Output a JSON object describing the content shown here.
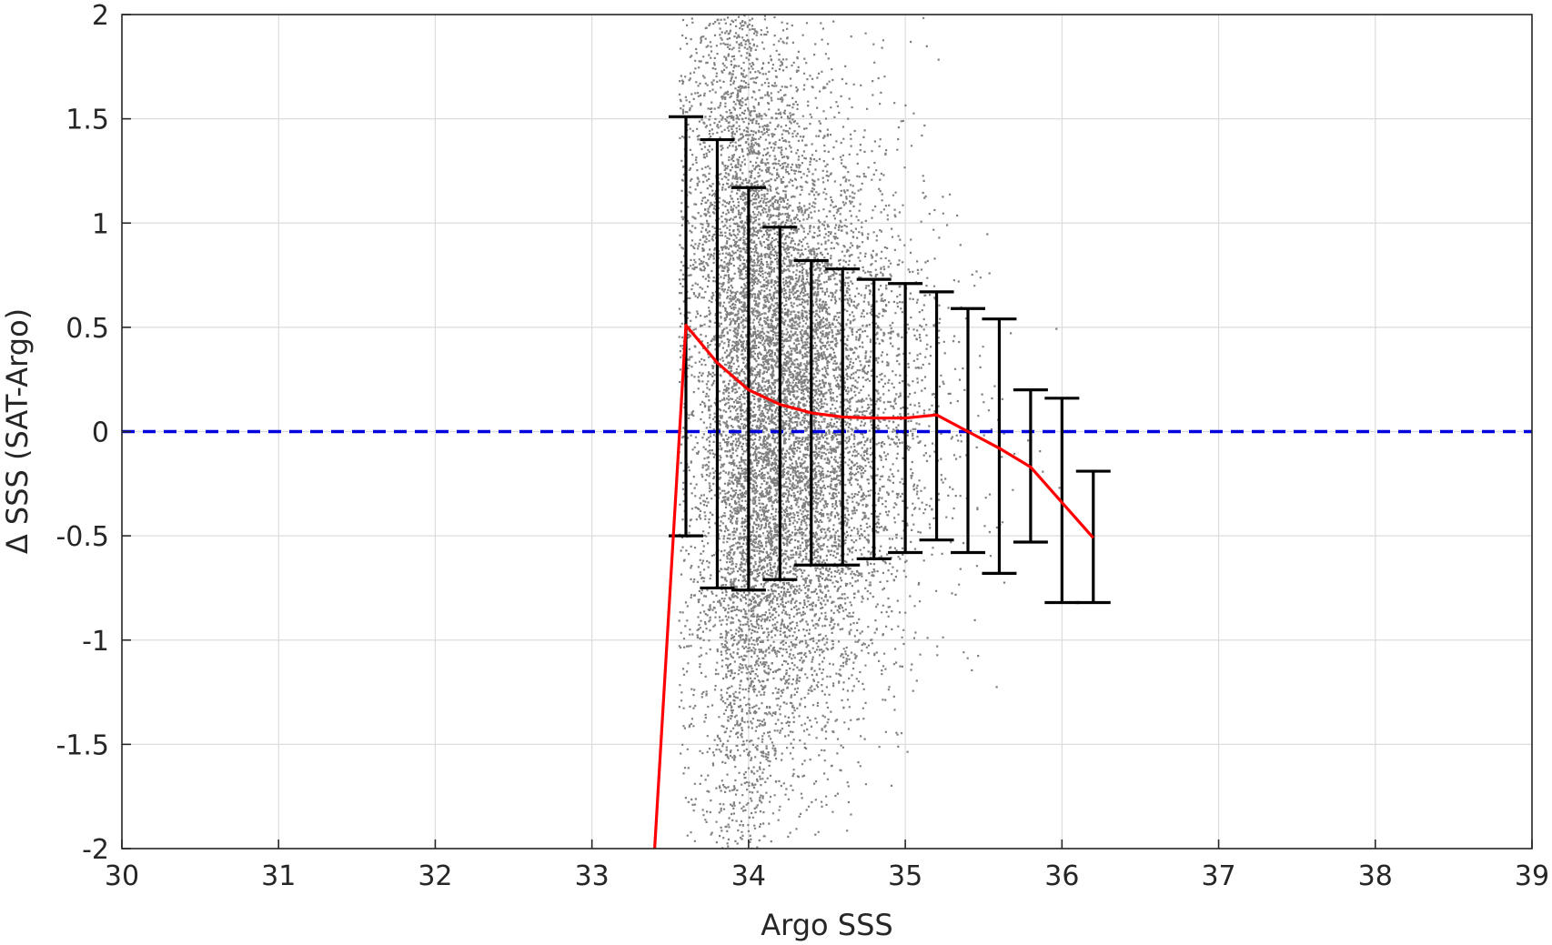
{
  "chart_data": {
    "type": "scatter",
    "xlabel": "Argo SSS",
    "ylabel": "Δ SSS (SAT-Argo)",
    "xlim": [
      30,
      39
    ],
    "ylim": [
      -2,
      2
    ],
    "x_ticks": [
      30,
      31,
      32,
      33,
      34,
      35,
      36,
      37,
      38,
      39
    ],
    "y_ticks": [
      -2,
      -1.5,
      -1,
      -0.5,
      0,
      0.5,
      1,
      1.5,
      2
    ],
    "x_tick_labels": [
      "30",
      "31",
      "32",
      "33",
      "34",
      "35",
      "36",
      "37",
      "38",
      "39"
    ],
    "y_tick_labels": [
      "-2",
      "-1.5",
      "-1",
      "-0.5",
      "0",
      "0.5",
      "1",
      "1.5",
      "2"
    ],
    "grid": true,
    "colors": {
      "points": "#808080",
      "mean_line": "#ff0000",
      "zero_line": "#0000dd",
      "error_bars": "#000000"
    },
    "scatter_cloud": {
      "x_range": [
        33.5,
        36.4
      ],
      "dense_x_range": [
        33.7,
        35.2
      ],
      "y_spread_range": [
        -2,
        2
      ],
      "point_count_approx": 12000
    },
    "binned_stats": {
      "x": [
        33.4,
        33.6,
        33.8,
        34.0,
        34.2,
        34.4,
        34.6,
        34.8,
        35.0,
        35.2,
        35.4,
        35.6,
        35.8,
        36.0,
        36.2
      ],
      "mean": [
        -2.0,
        0.51,
        0.33,
        0.2,
        0.13,
        0.09,
        0.07,
        0.065,
        0.065,
        0.08,
        0.0,
        -0.08,
        -0.17,
        -0.34,
        -0.51
      ],
      "upper": [
        null,
        1.51,
        1.4,
        1.17,
        0.98,
        0.82,
        0.78,
        0.73,
        0.71,
        0.67,
        0.59,
        0.54,
        0.2,
        0.16,
        -0.19
      ],
      "lower": [
        null,
        -0.5,
        -0.75,
        -0.76,
        -0.71,
        -0.64,
        -0.64,
        -0.61,
        -0.58,
        -0.52,
        -0.58,
        -0.68,
        -0.53,
        -0.82,
        -0.82
      ]
    },
    "reference_line": {
      "y": 0,
      "style": "dashed"
    }
  }
}
